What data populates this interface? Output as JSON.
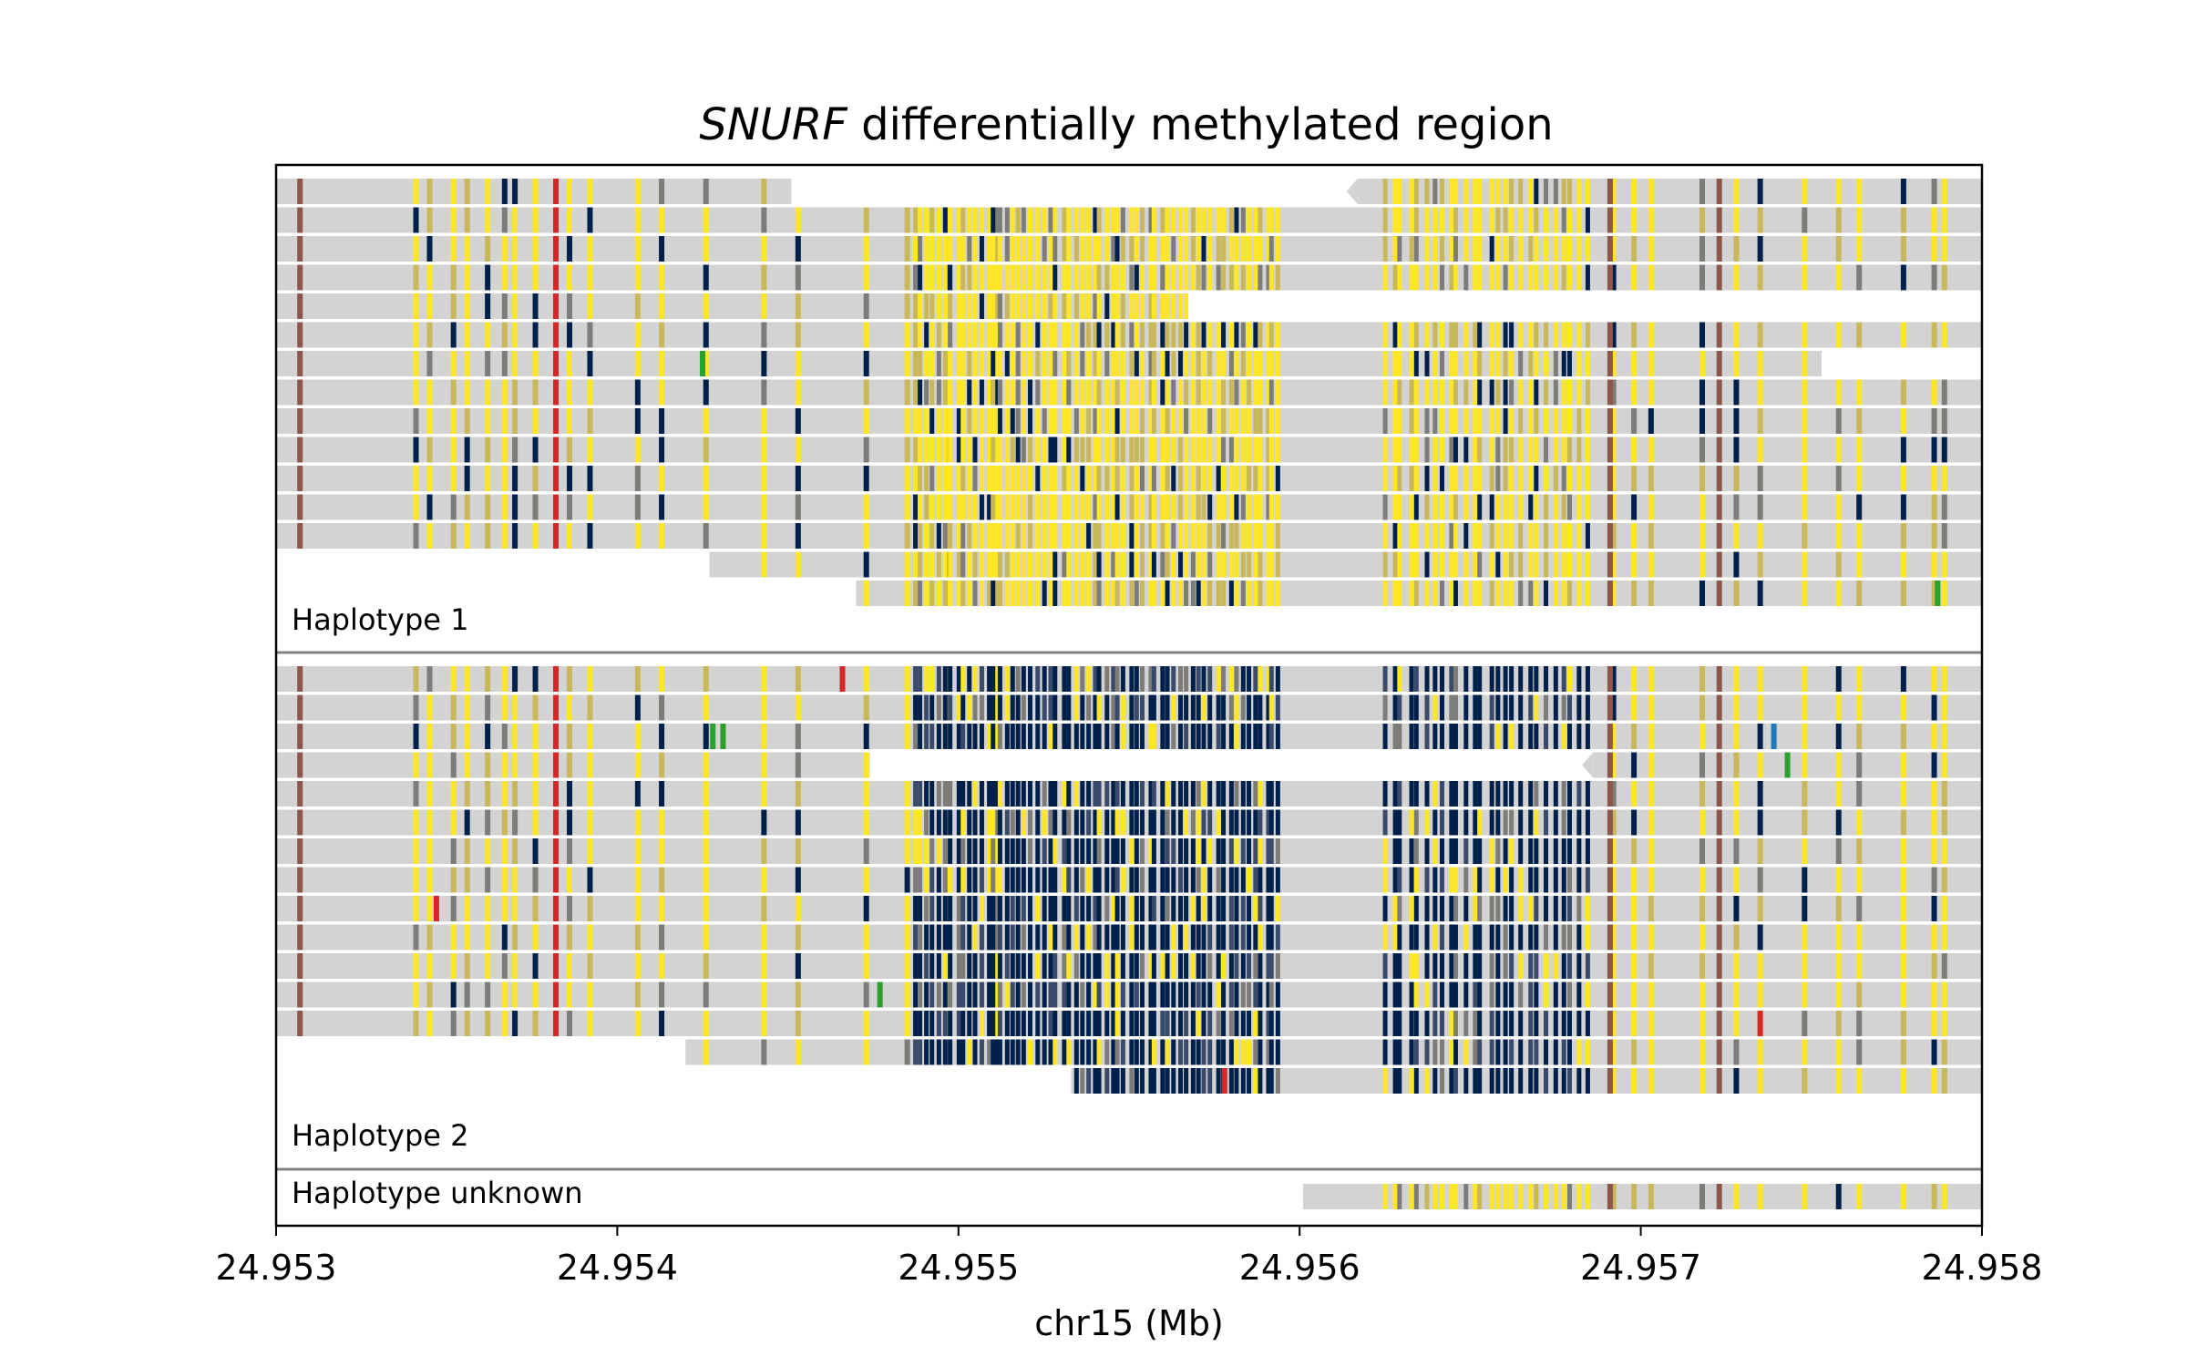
{
  "chart_data": {
    "type": "heatmap",
    "title_italic": "SNURF",
    "title_rest": " differentially methylated region",
    "xlabel": "chr15 (Mb)",
    "xlim": [
      24.953,
      24.958
    ],
    "xticks": [
      "24.953",
      "24.954",
      "24.955",
      "24.956",
      "24.957",
      "24.958"
    ],
    "grid": false,
    "panels": [
      {
        "label": "Haplotype 1",
        "methylation": "high",
        "reads": [
          {
            "start": 24.953,
            "end": 24.95451,
            "gap_end": 24.95617
          },
          {
            "start": 24.953,
            "end": 24.958
          },
          {
            "start": 24.953,
            "end": 24.958
          },
          {
            "start": 24.953,
            "end": 24.958
          },
          {
            "start": 24.953,
            "end": 24.95567
          },
          {
            "start": 24.953,
            "end": 24.958
          },
          {
            "start": 24.953,
            "end": 24.95753
          },
          {
            "start": 24.953,
            "end": 24.958
          },
          {
            "start": 24.953,
            "end": 24.958
          },
          {
            "start": 24.953,
            "end": 24.958
          },
          {
            "start": 24.953,
            "end": 24.958
          },
          {
            "start": 24.953,
            "end": 24.958
          },
          {
            "start": 24.953,
            "end": 24.958
          },
          {
            "start": 24.95427,
            "end": 24.958
          },
          {
            "start": 24.9547,
            "end": 24.958
          }
        ]
      },
      {
        "label": "Haplotype 2",
        "methylation": "low",
        "reads": [
          {
            "start": 24.953,
            "end": 24.958
          },
          {
            "start": 24.953,
            "end": 24.958
          },
          {
            "start": 24.953,
            "end": 24.958
          },
          {
            "start": 24.953,
            "end": 24.95474,
            "gap_end": 24.95686
          },
          {
            "start": 24.953,
            "end": 24.958
          },
          {
            "start": 24.953,
            "end": 24.958
          },
          {
            "start": 24.953,
            "end": 24.958
          },
          {
            "start": 24.953,
            "end": 24.958
          },
          {
            "start": 24.953,
            "end": 24.958
          },
          {
            "start": 24.953,
            "end": 24.958
          },
          {
            "start": 24.953,
            "end": 24.958
          },
          {
            "start": 24.953,
            "end": 24.958
          },
          {
            "start": 24.953,
            "end": 24.958
          },
          {
            "start": 24.9542,
            "end": 24.958
          },
          {
            "start": 24.95533,
            "end": 24.958
          }
        ]
      },
      {
        "label": "Haplotype unknown",
        "methylation": "high",
        "reads": [
          {
            "start": 24.95601,
            "end": 24.958
          }
        ]
      }
    ],
    "colors": {
      "read": "#d3d3d3",
      "methylated": "#fde725",
      "unmethylated": "#00204c",
      "intermediate": "#7d7c78",
      "mismatch_red": "#d62728",
      "mismatch_brown": "#8c564b",
      "mismatch_green": "#2ca02c",
      "mismatch_blue": "#1f77b4",
      "divider": "#808080"
    }
  }
}
